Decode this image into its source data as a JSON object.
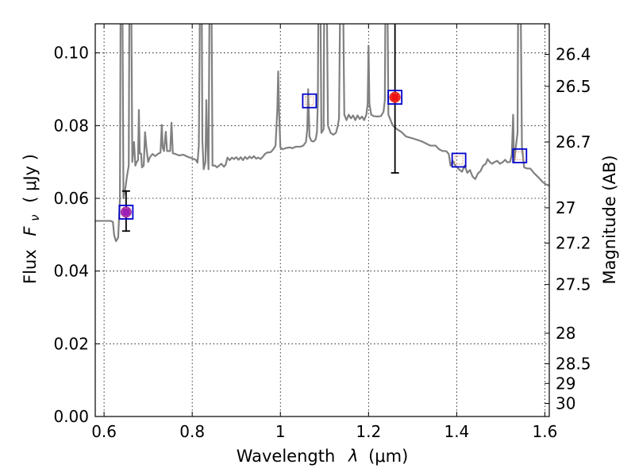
{
  "chart_data": {
    "type": "line",
    "xlabel": "Wavelength",
    "xlabel_symbol": "λ",
    "xlabel_unit": "(μm)",
    "ylabel": "Flux",
    "ylabel_symbol": "F",
    "ylabel_subscript": "ν",
    "ylabel_unit": "( μJy )",
    "ylabel_right": "Magnitude (AB)",
    "xlim": [
      0.58,
      1.61
    ],
    "ylim": [
      0.0,
      0.108
    ],
    "grid": true,
    "x_ticks": [
      {
        "value": 0.6,
        "label": "0.6"
      },
      {
        "value": 0.8,
        "label": "0.8"
      },
      {
        "value": 1.0,
        "label": "1"
      },
      {
        "value": 1.2,
        "label": "1.2"
      },
      {
        "value": 1.4,
        "label": "1.4"
      },
      {
        "value": 1.6,
        "label": "1.6"
      }
    ],
    "y_ticks": [
      {
        "value": 0.0,
        "label": "0.00"
      },
      {
        "value": 0.02,
        "label": "0.02"
      },
      {
        "value": 0.04,
        "label": "0.04"
      },
      {
        "value": 0.06,
        "label": "0.06"
      },
      {
        "value": 0.08,
        "label": "0.08"
      },
      {
        "value": 0.1,
        "label": "0.10"
      }
    ],
    "right_ticks": [
      {
        "label": "26.4",
        "flux": 0.0996
      },
      {
        "label": "26.5",
        "flux": 0.0908
      },
      {
        "label": "26.7",
        "flux": 0.0755
      },
      {
        "label": "27",
        "flux": 0.0574
      },
      {
        "label": "27.2",
        "flux": 0.0477
      },
      {
        "label": "27.5",
        "flux": 0.0363
      },
      {
        "label": "28",
        "flux": 0.0229
      },
      {
        "label": "28.5",
        "flux": 0.0145
      },
      {
        "label": "29",
        "flux": 0.0091
      },
      {
        "label": "30",
        "flux": 0.0036
      }
    ],
    "template_spectrum": {
      "color": "#808080",
      "points": [
        [
          0.58,
          0.0538
        ],
        [
          0.615,
          0.0538
        ],
        [
          0.62,
          0.0535
        ],
        [
          0.623,
          0.0498
        ],
        [
          0.627,
          0.0482
        ],
        [
          0.632,
          0.0492
        ],
        [
          0.636,
          0.06
        ],
        [
          0.638,
          0.13
        ],
        [
          0.641,
          0.13
        ],
        [
          0.644,
          0.06
        ],
        [
          0.648,
          0.0625
        ],
        [
          0.652,
          0.0661
        ],
        [
          0.656,
          0.069
        ],
        [
          0.658,
          0.13
        ],
        [
          0.661,
          0.13
        ],
        [
          0.664,
          0.07
        ],
        [
          0.668,
          0.0755
        ],
        [
          0.671,
          0.069
        ],
        [
          0.674,
          0.07
        ],
        [
          0.677,
          0.0705
        ],
        [
          0.679,
          0.0843
        ],
        [
          0.681,
          0.0723
        ],
        [
          0.684,
          0.0723
        ],
        [
          0.686,
          0.0685
        ],
        [
          0.69,
          0.069
        ],
        [
          0.693,
          0.0782
        ],
        [
          0.696,
          0.074
        ],
        [
          0.7,
          0.07
        ],
        [
          0.704,
          0.0713
        ],
        [
          0.71,
          0.0722
        ],
        [
          0.716,
          0.0716
        ],
        [
          0.722,
          0.0722
        ],
        [
          0.728,
          0.0726
        ],
        [
          0.731,
          0.0802
        ],
        [
          0.733,
          0.074
        ],
        [
          0.736,
          0.073
        ],
        [
          0.74,
          0.0783
        ],
        [
          0.743,
          0.073
        ],
        [
          0.75,
          0.073
        ],
        [
          0.753,
          0.0808
        ],
        [
          0.756,
          0.0724
        ],
        [
          0.762,
          0.0722
        ],
        [
          0.77,
          0.0718
        ],
        [
          0.78,
          0.072
        ],
        [
          0.79,
          0.0714
        ],
        [
          0.8,
          0.071
        ],
        [
          0.808,
          0.0706
        ],
        [
          0.812,
          0.0698
        ],
        [
          0.815,
          0.0745
        ],
        [
          0.817,
          0.105
        ],
        [
          0.818,
          0.13
        ],
        [
          0.821,
          0.13
        ],
        [
          0.823,
          0.076
        ],
        [
          0.826,
          0.068
        ],
        [
          0.83,
          0.07
        ],
        [
          0.832,
          0.087
        ],
        [
          0.834,
          0.076
        ],
        [
          0.837,
          0.068
        ],
        [
          0.84,
          0.13
        ],
        [
          0.843,
          0.13
        ],
        [
          0.846,
          0.069
        ],
        [
          0.852,
          0.069
        ],
        [
          0.856,
          0.0685
        ],
        [
          0.866,
          0.0695
        ],
        [
          0.872,
          0.0687
        ],
        [
          0.876,
          0.0693
        ],
        [
          0.88,
          0.0712
        ],
        [
          0.885,
          0.0705
        ],
        [
          0.89,
          0.0712
        ],
        [
          0.895,
          0.0708
        ],
        [
          0.9,
          0.0713
        ],
        [
          0.905,
          0.0706
        ],
        [
          0.91,
          0.0713
        ],
        [
          0.915,
          0.0705
        ],
        [
          0.92,
          0.0714
        ],
        [
          0.925,
          0.0708
        ],
        [
          0.93,
          0.0715
        ],
        [
          0.935,
          0.071
        ],
        [
          0.94,
          0.0716
        ],
        [
          0.945,
          0.0709
        ],
        [
          0.95,
          0.0712
        ],
        [
          0.955,
          0.0708
        ],
        [
          0.96,
          0.0714
        ],
        [
          0.965,
          0.0722
        ],
        [
          0.97,
          0.0726
        ],
        [
          0.978,
          0.0727
        ],
        [
          0.984,
          0.0735
        ],
        [
          0.989,
          0.0745
        ],
        [
          0.993,
          0.0843
        ],
        [
          0.995,
          0.0949
        ],
        [
          0.997,
          0.084
        ],
        [
          1.0,
          0.074
        ],
        [
          1.005,
          0.0735
        ],
        [
          1.012,
          0.0738
        ],
        [
          1.02,
          0.074
        ],
        [
          1.028,
          0.0738
        ],
        [
          1.035,
          0.0742
        ],
        [
          1.045,
          0.0742
        ],
        [
          1.052,
          0.0745
        ],
        [
          1.058,
          0.0755
        ],
        [
          1.061,
          0.079
        ],
        [
          1.063,
          0.09
        ],
        [
          1.066,
          0.077
        ],
        [
          1.07,
          0.0758
        ],
        [
          1.075,
          0.0756
        ],
        [
          1.08,
          0.0762
        ],
        [
          1.083,
          0.0782
        ],
        [
          1.085,
          0.087
        ],
        [
          1.087,
          0.13
        ],
        [
          1.09,
          0.13
        ],
        [
          1.093,
          0.078
        ],
        [
          1.098,
          0.079
        ],
        [
          1.1,
          0.13
        ],
        [
          1.104,
          0.13
        ],
        [
          1.108,
          0.08
        ],
        [
          1.114,
          0.078
        ],
        [
          1.12,
          0.0775
        ],
        [
          1.126,
          0.078
        ],
        [
          1.13,
          0.0798
        ],
        [
          1.133,
          0.082
        ],
        [
          1.137,
          0.13
        ],
        [
          1.141,
          0.13
        ],
        [
          1.145,
          0.083
        ],
        [
          1.15,
          0.0815
        ],
        [
          1.155,
          0.083
        ],
        [
          1.16,
          0.082
        ],
        [
          1.165,
          0.0828
        ],
        [
          1.17,
          0.0815
        ],
        [
          1.175,
          0.0828
        ],
        [
          1.18,
          0.0818
        ],
        [
          1.185,
          0.0825
        ],
        [
          1.19,
          0.0815
        ],
        [
          1.195,
          0.083
        ],
        [
          1.198,
          0.086
        ],
        [
          1.2,
          0.102
        ],
        [
          1.202,
          0.086
        ],
        [
          1.206,
          0.083
        ],
        [
          1.212,
          0.0826
        ],
        [
          1.22,
          0.0825
        ],
        [
          1.228,
          0.0826
        ],
        [
          1.234,
          0.0838
        ],
        [
          1.237,
          0.087
        ],
        [
          1.239,
          0.13
        ],
        [
          1.242,
          0.13
        ],
        [
          1.245,
          0.083
        ],
        [
          1.255,
          0.08
        ],
        [
          1.265,
          0.079
        ],
        [
          1.275,
          0.0782
        ],
        [
          1.285,
          0.077
        ],
        [
          1.3,
          0.0765
        ],
        [
          1.32,
          0.0757
        ],
        [
          1.34,
          0.0745
        ],
        [
          1.352,
          0.0745
        ],
        [
          1.36,
          0.0735
        ],
        [
          1.368,
          0.073
        ],
        [
          1.376,
          0.073
        ],
        [
          1.382,
          0.0722
        ],
        [
          1.386,
          0.069
        ],
        [
          1.391,
          0.0703
        ],
        [
          1.397,
          0.069
        ],
        [
          1.405,
          0.068
        ],
        [
          1.412,
          0.0673
        ],
        [
          1.418,
          0.069
        ],
        [
          1.424,
          0.067
        ],
        [
          1.43,
          0.0678
        ],
        [
          1.436,
          0.066
        ],
        [
          1.442,
          0.0653
        ],
        [
          1.448,
          0.0668
        ],
        [
          1.454,
          0.0675
        ],
        [
          1.46,
          0.069
        ],
        [
          1.466,
          0.0695
        ],
        [
          1.47,
          0.0708
        ],
        [
          1.475,
          0.07
        ],
        [
          1.48,
          0.0695
        ],
        [
          1.486,
          0.07
        ],
        [
          1.492,
          0.0703
        ],
        [
          1.498,
          0.0695
        ],
        [
          1.505,
          0.07
        ],
        [
          1.51,
          0.0706
        ],
        [
          1.515,
          0.0699
        ],
        [
          1.521,
          0.07
        ],
        [
          1.525,
          0.072
        ],
        [
          1.528,
          0.083
        ],
        [
          1.53,
          0.07
        ],
        [
          1.534,
          0.074
        ],
        [
          1.538,
          0.078
        ],
        [
          1.54,
          0.13
        ],
        [
          1.544,
          0.13
        ],
        [
          1.548,
          0.074
        ],
        [
          1.553,
          0.0685
        ],
        [
          1.56,
          0.0682
        ],
        [
          1.567,
          0.0682
        ],
        [
          1.575,
          0.067
        ],
        [
          1.585,
          0.0658
        ],
        [
          1.595,
          0.0645
        ],
        [
          1.603,
          0.0638
        ],
        [
          1.61,
          0.0635
        ]
      ]
    },
    "model_boxes": [
      {
        "x": 0.65,
        "y": 0.0562
      },
      {
        "x": 1.066,
        "y": 0.0868
      },
      {
        "x": 1.26,
        "y": 0.0878
      },
      {
        "x": 1.405,
        "y": 0.0705
      },
      {
        "x": 1.543,
        "y": 0.0717
      }
    ],
    "observed_points": [
      {
        "x": 0.65,
        "y": 0.0562,
        "yerr_low": 0.0052,
        "yerr_high": 0.0058,
        "color": "#9b1fb8"
      },
      {
        "x": 1.26,
        "y": 0.0878,
        "yerr_low": 0.0208,
        "yerr_high": 0.03,
        "color": "#ee1111"
      }
    ],
    "colors": {
      "model_box": "#0000cc",
      "model_box_inner": "#dd8866",
      "spectrum": "#808080",
      "errorbar": "#000000"
    }
  }
}
